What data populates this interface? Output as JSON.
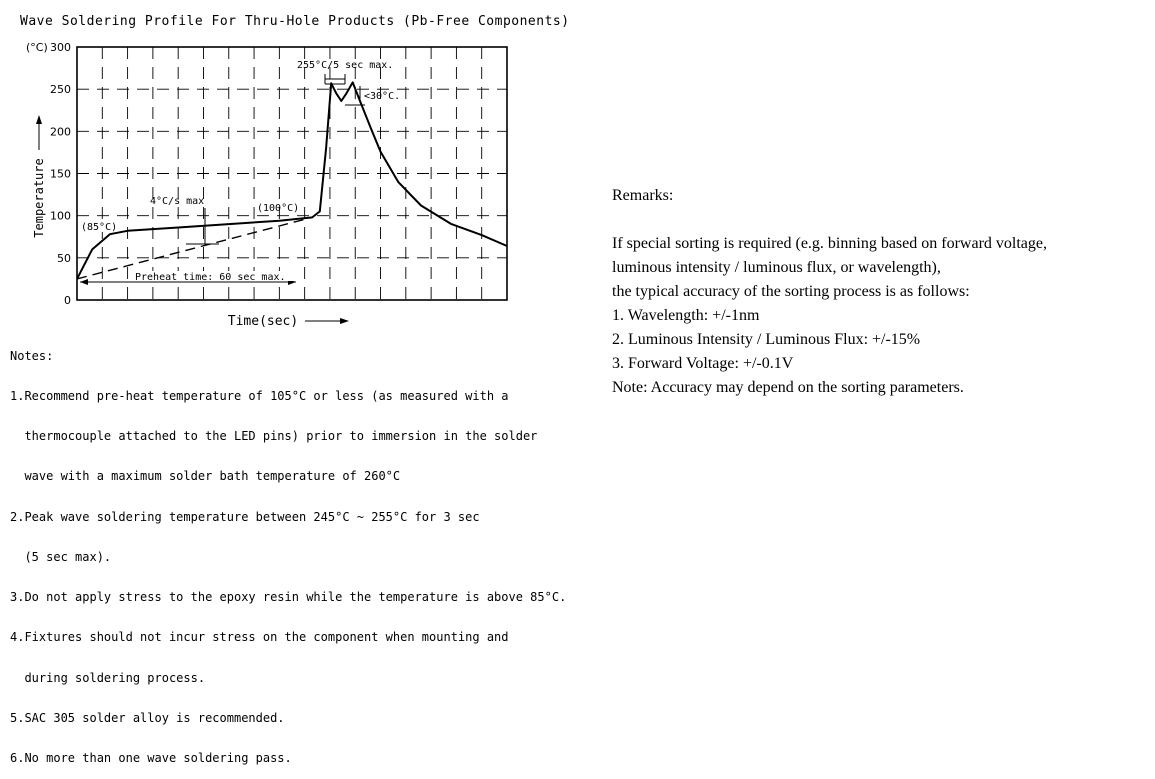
{
  "chart_data": {
    "type": "line",
    "title": "Wave Soldering Profile For Thru-Hole Products (Pb-Free Components)",
    "xlabel": "Time(sec)",
    "ylabel": "Temperature",
    "y_unit_label": "(°C)",
    "ylim": [
      0,
      300
    ],
    "yticks": [
      "0",
      "50",
      "100",
      "150",
      "200",
      "250",
      "300"
    ],
    "xlim": [
      0,
      17
    ],
    "grid": true,
    "series": [
      {
        "x": [
          0,
          0.6,
          1.3,
          2,
          4,
          6,
          8,
          9.3,
          9.6,
          9.85,
          10.05,
          10.25,
          10.45,
          10.65,
          10.9,
          11.2,
          11.6,
          12,
          12.7,
          13.6,
          14.8,
          16,
          17
        ],
        "values": [
          25,
          60,
          78,
          82,
          86,
          90,
          94,
          98,
          105,
          180,
          257,
          245,
          236,
          245,
          258,
          235,
          205,
          176,
          140,
          112,
          90,
          77,
          64
        ]
      },
      {
        "x": [
          0,
          9.3
        ],
        "values": [
          25,
          98
        ]
      }
    ],
    "annotations": {
      "peak": "255°C/5 sec max.",
      "band": "<30°C.",
      "rate": "4°C/s max",
      "temp_100": "(100°C)",
      "temp_85": "(85°C)",
      "preheat": "Preheat time: 60 sec max."
    }
  },
  "notes": {
    "heading": "Notes:",
    "lines": [
      "1.Recommend pre-heat temperature of 105°C or less (as measured with a",
      "  thermocouple attached to the LED pins) prior to immersion in the solder",
      "  wave with a maximum solder bath temperature of 260°C",
      "2.Peak wave soldering temperature between 245°C ~ 255°C for 3 sec",
      "  (5 sec max).",
      "3.Do not apply stress to the epoxy resin while the temperature is above 85°C.",
      "4.Fixtures should not incur stress on the component when mounting and",
      "  during soldering process.",
      "5.SAC 305 solder alloy is recommended.",
      "6.No more than one wave soldering pass."
    ]
  },
  "remarks": {
    "heading": "Remarks:",
    "lines": [
      "If special sorting is required (e.g. binning based on forward voltage,",
      "luminous intensity / luminous flux, or wavelength),",
      "the typical accuracy of the sorting process is as follows:",
      "1. Wavelength: +/-1nm",
      "2. Luminous Intensity / Luminous Flux: +/-15%",
      "3. Forward Voltage: +/-0.1V",
      "Note: Accuracy may depend on the sorting parameters."
    ]
  }
}
